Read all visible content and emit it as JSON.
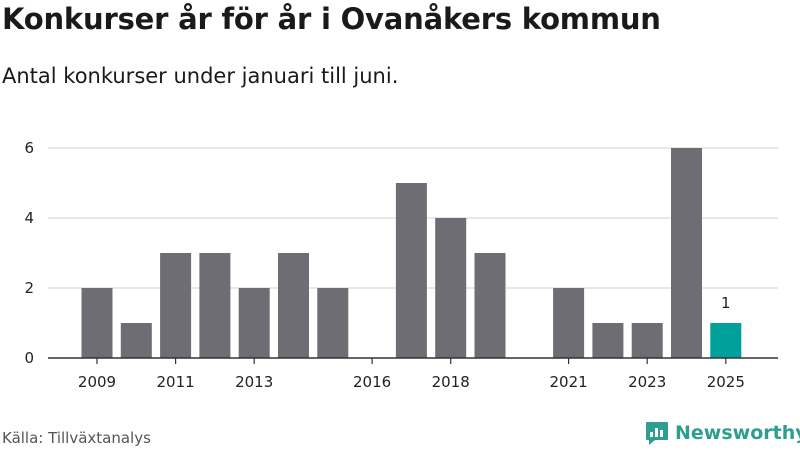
{
  "title": "Konkurser år för år i Ovanåkers kommun",
  "subtitle": "Antal konkurser under januari till juni.",
  "source": "Källa: Tillväxtanalys",
  "brand": {
    "name": "Newsworthy",
    "icon": "newsworthy-chart-bubble-icon",
    "color": "#2e9e8f"
  },
  "colors": {
    "bar": "#6e6d73",
    "highlight": "#00a19a",
    "grid": "#d9d9d9",
    "axis": "#333333"
  },
  "chart_data": {
    "type": "bar",
    "title": "Konkurser år för år i Ovanåkers kommun",
    "subtitle": "Antal konkurser under januari till juni.",
    "xlabel": "",
    "ylabel": "",
    "categories": [
      "2009",
      "2010",
      "2011",
      "2012",
      "2013",
      "2014",
      "2015",
      "2016",
      "2017",
      "2018",
      "2019",
      "2020",
      "2021",
      "2022",
      "2023",
      "2024",
      "2025"
    ],
    "values": [
      2,
      1,
      3,
      3,
      2,
      3,
      2,
      0,
      5,
      4,
      3,
      0,
      2,
      1,
      1,
      6,
      1
    ],
    "highlight_category": "2025",
    "data_labels": [
      {
        "category": "2025",
        "text": "1"
      }
    ],
    "x_tick_labels": [
      "2009",
      "2011",
      "2013",
      "2016",
      "2018",
      "2021",
      "2023",
      "2025"
    ],
    "y_ticks": [
      0,
      2,
      4,
      6
    ],
    "y_tick_labels": [
      "0",
      "2",
      "4",
      "6"
    ],
    "ylim": [
      0,
      6
    ],
    "grid": true,
    "legend": "none"
  }
}
